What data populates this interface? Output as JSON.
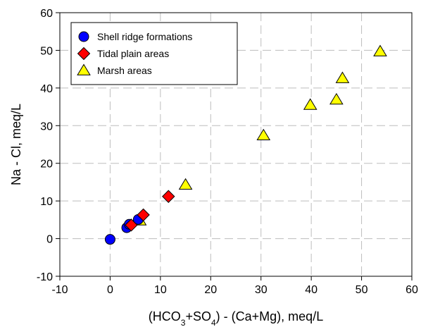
{
  "chart_data": {
    "type": "scatter",
    "xlabel": {
      "parts": [
        {
          "t": "(HCO"
        },
        {
          "t": "3",
          "sub": true
        },
        {
          "t": "+SO"
        },
        {
          "t": "4",
          "sub": true
        },
        {
          "t": ") - (Ca+Mg), meq/L"
        }
      ]
    },
    "ylabel": "Na - Cl, meq/L",
    "xlim": [
      -10,
      60
    ],
    "ylim": [
      -10,
      60
    ],
    "x_ticks": [
      -10,
      0,
      10,
      20,
      30,
      40,
      50,
      60
    ],
    "y_ticks": [
      -10,
      0,
      10,
      20,
      30,
      40,
      50,
      60
    ],
    "x_tick_labels": [
      "-10",
      "0",
      "10",
      "20",
      "30",
      "40",
      "50",
      "60"
    ],
    "y_tick_labels": [
      "-10",
      "0",
      "10",
      "20",
      "30",
      "40",
      "50",
      "60"
    ],
    "grid": true,
    "legend_position": "top-left",
    "series": [
      {
        "name": "Shell ridge formations",
        "marker": "circle",
        "color": "#0000ff",
        "points": [
          [
            0.0,
            -0.2
          ],
          [
            3.3,
            2.9
          ],
          [
            3.8,
            3.8
          ],
          [
            5.6,
            5.1
          ]
        ]
      },
      {
        "name": "Tidal plain areas",
        "marker": "diamond",
        "color": "#ff0000",
        "points": [
          [
            4.2,
            3.6
          ],
          [
            6.6,
            6.3
          ],
          [
            11.6,
            11.2
          ]
        ]
      },
      {
        "name": "Marsh areas",
        "marker": "triangle",
        "color": "#ffff00",
        "points": [
          [
            5.9,
            4.8
          ],
          [
            15.0,
            14.3
          ],
          [
            30.5,
            27.4
          ],
          [
            39.8,
            35.5
          ],
          [
            45.0,
            36.9
          ],
          [
            46.2,
            42.6
          ],
          [
            53.7,
            49.7
          ]
        ]
      }
    ]
  }
}
